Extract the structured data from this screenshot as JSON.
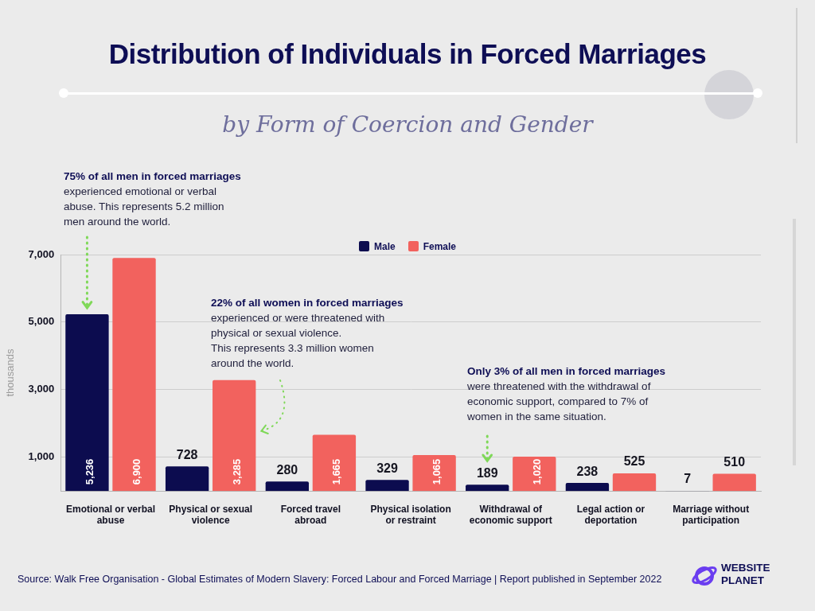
{
  "chart_data": {
    "type": "bar",
    "title": "Distribution of Individuals in Forced Marriages",
    "subtitle": "by Form of Coercion and Gender",
    "ylabel": "thousands",
    "categories": [
      "Emotional or verbal abuse",
      "Physical or sexual violence",
      "Forced travel abroad",
      "Physical isolation or restraint",
      "Withdrawal of economic support",
      "Legal action or deportation",
      "Marriage without participation"
    ],
    "series": [
      {
        "name": "Male",
        "color": "#0c0c4f",
        "values": [
          5236,
          728,
          280,
          329,
          189,
          238,
          7
        ],
        "value_labels": [
          "5,236",
          "728",
          "280",
          "329",
          "189",
          "238",
          "7"
        ]
      },
      {
        "name": "Female",
        "color": "#f2625e",
        "values": [
          6900,
          3285,
          1665,
          1065,
          1020,
          525,
          510
        ],
        "value_labels": [
          "6,900",
          "3,285",
          "1,665",
          "1,065",
          "1,020",
          "525",
          "510"
        ]
      }
    ],
    "ylim": [
      0,
      7000
    ],
    "yticks": [
      {
        "value": 1000,
        "label": "1,000"
      },
      {
        "value": 3000,
        "label": "3,000"
      },
      {
        "value": 5000,
        "label": "5,000"
      },
      {
        "value": 7000,
        "label": "7,000"
      }
    ],
    "grid": true,
    "legend": "top",
    "data_labels": true,
    "annotations": [
      {
        "heading": "75% of all men in forced marriages",
        "lines": [
          "experienced emotional or verbal",
          "abuse. This represents 5.2 million",
          "men around the world."
        ]
      },
      {
        "heading": "22% of all women in forced marriages",
        "lines": [
          "experienced or were threatened with",
          "physical or sexual violence.",
          "This represents 3.3 million women",
          "around the world."
        ]
      },
      {
        "heading": "Only 3% of all men in forced marriages",
        "lines": [
          "were threatened with the withdrawal of",
          "economic support, compared to 7% of",
          "women in the same situation."
        ]
      }
    ],
    "source": "Source: Walk Free Organisation - Global Estimates of Modern Slavery: Forced Labour and Forced Marriage | Report published in September 2022",
    "logo": "WEBSITE PLANET"
  }
}
